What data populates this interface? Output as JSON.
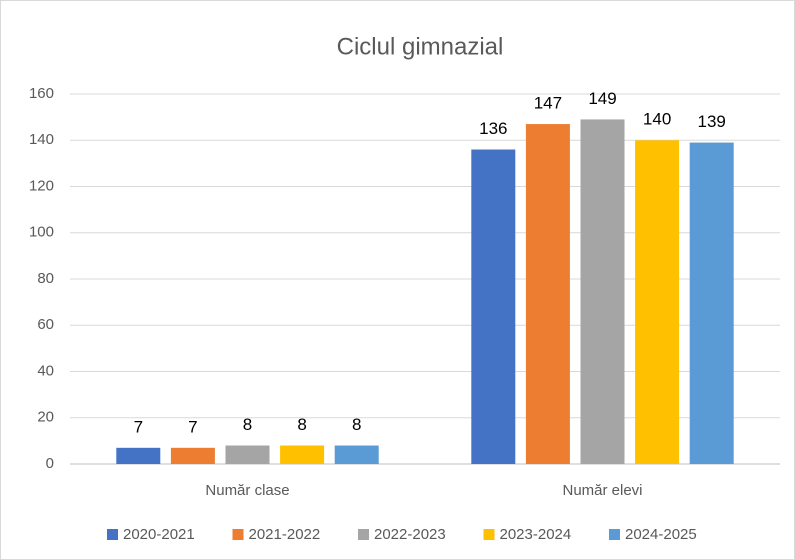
{
  "chart_data": {
    "type": "bar",
    "title": "Ciclul gimnazial",
    "categories": [
      "Număr clase",
      "Număr elevi"
    ],
    "series": [
      {
        "name": "2020-2021",
        "color": "#4472c4",
        "values": [
          7,
          136
        ]
      },
      {
        "name": "2021-2022",
        "color": "#ed7d31",
        "values": [
          7,
          147
        ]
      },
      {
        "name": "2022-2023",
        "color": "#a5a5a5",
        "values": [
          8,
          149
        ]
      },
      {
        "name": "2023-2024",
        "color": "#ffc000",
        "values": [
          8,
          140
        ]
      },
      {
        "name": "2024-2025",
        "color": "#5b9bd5",
        "values": [
          8,
          139
        ]
      }
    ],
    "ylim": [
      0,
      160
    ],
    "yticks": [
      0,
      20,
      40,
      60,
      80,
      100,
      120,
      140,
      160
    ],
    "grid": true,
    "legend": "bottom"
  }
}
